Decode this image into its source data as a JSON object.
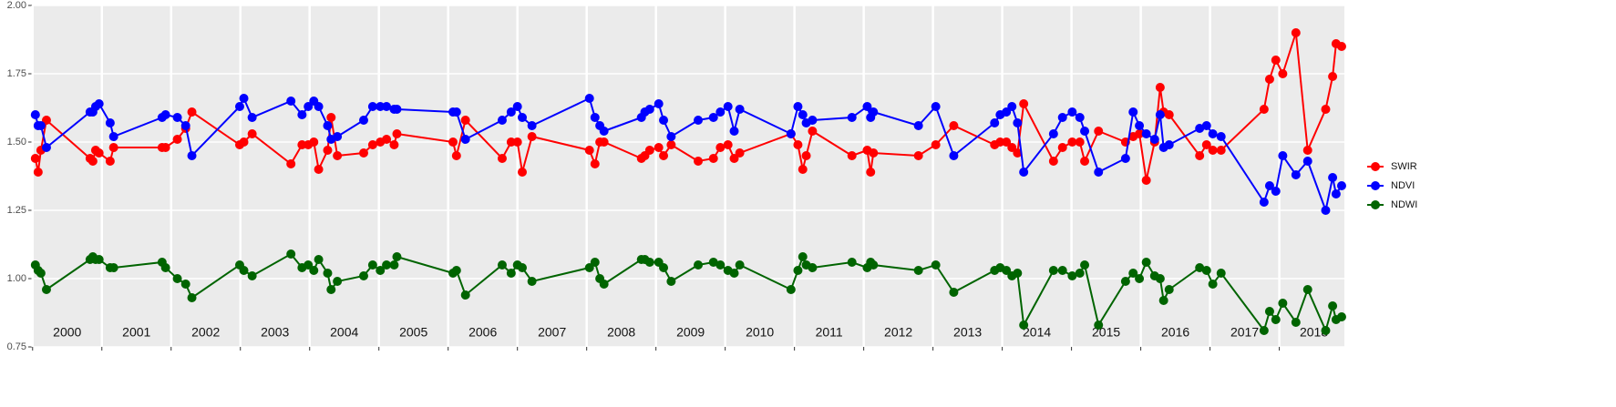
{
  "chart_data": {
    "type": "line",
    "x": [
      2000.04,
      2000.08,
      2000.12,
      2000.2,
      2000.83,
      2000.87,
      2000.91,
      2000.96,
      2001.12,
      2001.17,
      2001.87,
      2001.92,
      2002.09,
      2002.21,
      2002.3,
      2002.99,
      2003.05,
      2003.17,
      2003.73,
      2003.89,
      2003.98,
      2004.06,
      2004.13,
      2004.26,
      2004.31,
      2004.4,
      2004.78,
      2004.91,
      2005.02,
      2005.11,
      2005.22,
      2005.26,
      2006.07,
      2006.12,
      2006.25,
      2006.78,
      2006.91,
      2007.0,
      2007.07,
      2007.21,
      2008.04,
      2008.12,
      2008.19,
      2008.25,
      2008.79,
      2008.84,
      2008.91,
      2009.04,
      2009.11,
      2009.22,
      2009.61,
      2009.83,
      2009.93,
      2010.04,
      2010.13,
      2010.21,
      2010.95,
      2011.05,
      2011.12,
      2011.17,
      2011.26,
      2011.83,
      2012.05,
      2012.1,
      2012.14,
      2012.79,
      2013.04,
      2013.3,
      2013.89,
      2013.97,
      2014.06,
      2014.14,
      2014.22,
      2014.31,
      2014.74,
      2014.87,
      2015.01,
      2015.12,
      2015.19,
      2015.39,
      2015.78,
      2015.89,
      2015.98,
      2016.08,
      2016.2,
      2016.28,
      2016.33,
      2016.41,
      2016.85,
      2016.95,
      2017.04,
      2017.16,
      2017.78,
      2017.86,
      2017.95,
      2018.05,
      2018.24,
      2018.41,
      2018.67,
      2018.77,
      2018.82,
      2018.9
    ],
    "series": [
      {
        "name": "SWIR",
        "color": "#ff0000",
        "values": [
          1.44,
          1.39,
          1.47,
          1.58,
          1.44,
          1.43,
          1.47,
          1.46,
          1.43,
          1.48,
          1.48,
          1.48,
          1.51,
          1.55,
          1.61,
          1.49,
          1.5,
          1.53,
          1.42,
          1.49,
          1.49,
          1.5,
          1.4,
          1.47,
          1.59,
          1.45,
          1.46,
          1.49,
          1.5,
          1.51,
          1.49,
          1.53,
          1.5,
          1.45,
          1.58,
          1.44,
          1.5,
          1.5,
          1.39,
          1.52,
          1.47,
          1.42,
          1.5,
          1.5,
          1.44,
          1.45,
          1.47,
          1.48,
          1.45,
          1.49,
          1.43,
          1.44,
          1.48,
          1.49,
          1.44,
          1.46,
          1.53,
          1.49,
          1.4,
          1.45,
          1.54,
          1.45,
          1.47,
          1.39,
          1.46,
          1.45,
          1.49,
          1.56,
          1.49,
          1.5,
          1.5,
          1.48,
          1.46,
          1.64,
          1.43,
          1.48,
          1.5,
          1.5,
          1.43,
          1.54,
          1.5,
          1.52,
          1.53,
          1.36,
          1.5,
          1.7,
          1.61,
          1.6,
          1.45,
          1.49,
          1.47,
          1.47,
          1.62,
          1.73,
          1.8,
          1.75,
          1.9,
          1.47,
          1.62,
          1.74,
          1.86,
          1.85
        ]
      },
      {
        "name": "NDVI",
        "color": "#0000ff",
        "values": [
          1.6,
          1.56,
          1.56,
          1.48,
          1.61,
          1.61,
          1.63,
          1.64,
          1.57,
          1.52,
          1.59,
          1.6,
          1.59,
          1.56,
          1.45,
          1.63,
          1.66,
          1.59,
          1.65,
          1.6,
          1.63,
          1.65,
          1.63,
          1.56,
          1.51,
          1.52,
          1.58,
          1.63,
          1.63,
          1.63,
          1.62,
          1.62,
          1.61,
          1.61,
          1.51,
          1.58,
          1.61,
          1.63,
          1.59,
          1.56,
          1.66,
          1.59,
          1.56,
          1.54,
          1.59,
          1.61,
          1.62,
          1.64,
          1.58,
          1.52,
          1.58,
          1.59,
          1.61,
          1.63,
          1.54,
          1.62,
          1.53,
          1.63,
          1.6,
          1.57,
          1.58,
          1.59,
          1.63,
          1.59,
          1.61,
          1.56,
          1.63,
          1.45,
          1.57,
          1.6,
          1.61,
          1.63,
          1.57,
          1.39,
          1.53,
          1.59,
          1.61,
          1.59,
          1.54,
          1.39,
          1.44,
          1.61,
          1.56,
          1.53,
          1.51,
          1.6,
          1.48,
          1.49,
          1.55,
          1.56,
          1.53,
          1.52,
          1.28,
          1.34,
          1.32,
          1.45,
          1.38,
          1.43,
          1.25,
          1.37,
          1.31,
          1.34
        ]
      },
      {
        "name": "NDWI",
        "color": "#006400",
        "values": [
          1.05,
          1.03,
          1.02,
          0.96,
          1.07,
          1.08,
          1.07,
          1.07,
          1.04,
          1.04,
          1.06,
          1.04,
          1.0,
          0.98,
          0.93,
          1.05,
          1.03,
          1.01,
          1.09,
          1.04,
          1.05,
          1.03,
          1.07,
          1.02,
          0.96,
          0.99,
          1.01,
          1.05,
          1.03,
          1.05,
          1.05,
          1.08,
          1.02,
          1.03,
          0.94,
          1.05,
          1.02,
          1.05,
          1.04,
          0.99,
          1.04,
          1.06,
          1.0,
          0.98,
          1.07,
          1.07,
          1.06,
          1.06,
          1.04,
          0.99,
          1.05,
          1.06,
          1.05,
          1.03,
          1.02,
          1.05,
          0.96,
          1.03,
          1.08,
          1.05,
          1.04,
          1.06,
          1.04,
          1.06,
          1.05,
          1.03,
          1.05,
          0.95,
          1.03,
          1.04,
          1.03,
          1.01,
          1.02,
          0.83,
          1.03,
          1.03,
          1.01,
          1.02,
          1.05,
          0.83,
          0.99,
          1.02,
          1.0,
          1.06,
          1.01,
          1.0,
          0.92,
          0.96,
          1.04,
          1.03,
          0.98,
          1.02,
          0.81,
          0.88,
          0.85,
          0.91,
          0.84,
          0.96,
          0.81,
          0.9,
          0.85,
          0.86
        ]
      }
    ],
    "xlim": [
      1999.99,
      2018.94
    ],
    "xticks": [
      2000,
      2001,
      2002,
      2003,
      2004,
      2005,
      2006,
      2007,
      2008,
      2009,
      2010,
      2011,
      2012,
      2013,
      2014,
      2015,
      2016,
      2017,
      2018
    ],
    "ylim": [
      0.75,
      2.0
    ],
    "yticks": [
      {
        "value": 0.75,
        "label": "0.75"
      },
      {
        "value": 1.0,
        "label": "1.00"
      },
      {
        "value": 1.25,
        "label": "1.25"
      },
      {
        "value": 1.5,
        "label": "1.50"
      },
      {
        "value": 1.75,
        "label": "1.75"
      },
      {
        "value": 2.0,
        "label": "2.00"
      }
    ],
    "grid": true,
    "background": "#ebebeb",
    "legend": "right"
  }
}
